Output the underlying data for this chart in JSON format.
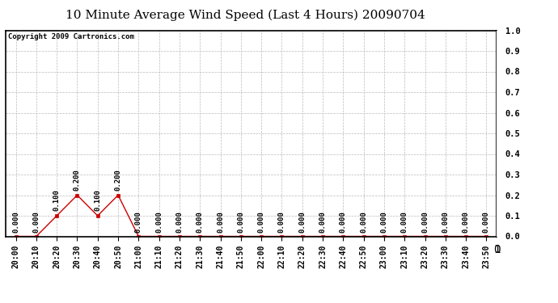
{
  "title": "10 Minute Average Wind Speed (Last 4 Hours) 20090704",
  "copyright_text": "Copyright 2009 Cartronics.com",
  "x_labels": [
    "20:00",
    "20:10",
    "20:20",
    "20:30",
    "20:40",
    "20:50",
    "21:00",
    "21:10",
    "21:20",
    "21:30",
    "21:40",
    "21:50",
    "22:00",
    "22:10",
    "22:20",
    "22:30",
    "22:40",
    "22:50",
    "23:00",
    "23:10",
    "23:20",
    "23:30",
    "23:40",
    "23:50"
  ],
  "y_values": [
    0.0,
    0.0,
    0.1,
    0.2,
    0.1,
    0.2,
    0.0,
    0.0,
    0.0,
    0.0,
    0.0,
    0.0,
    0.0,
    0.0,
    0.0,
    0.0,
    0.0,
    0.0,
    0.0,
    0.0,
    0.0,
    0.0,
    0.0,
    0.0
  ],
  "line_color": "#cc0000",
  "marker_color": "#cc0000",
  "marker": "s",
  "marker_size": 2.5,
  "ylim": [
    0.0,
    1.0
  ],
  "yticks": [
    0.0,
    0.1,
    0.2,
    0.3,
    0.4,
    0.5,
    0.6,
    0.7,
    0.8,
    0.9,
    1.0
  ],
  "background_color": "#ffffff",
  "plot_bg_color": "#ffffff",
  "grid_color": "#bbbbbb",
  "title_fontsize": 11,
  "label_fontsize": 7,
  "annotation_fontsize": 6.5,
  "copyright_fontsize": 6.5
}
